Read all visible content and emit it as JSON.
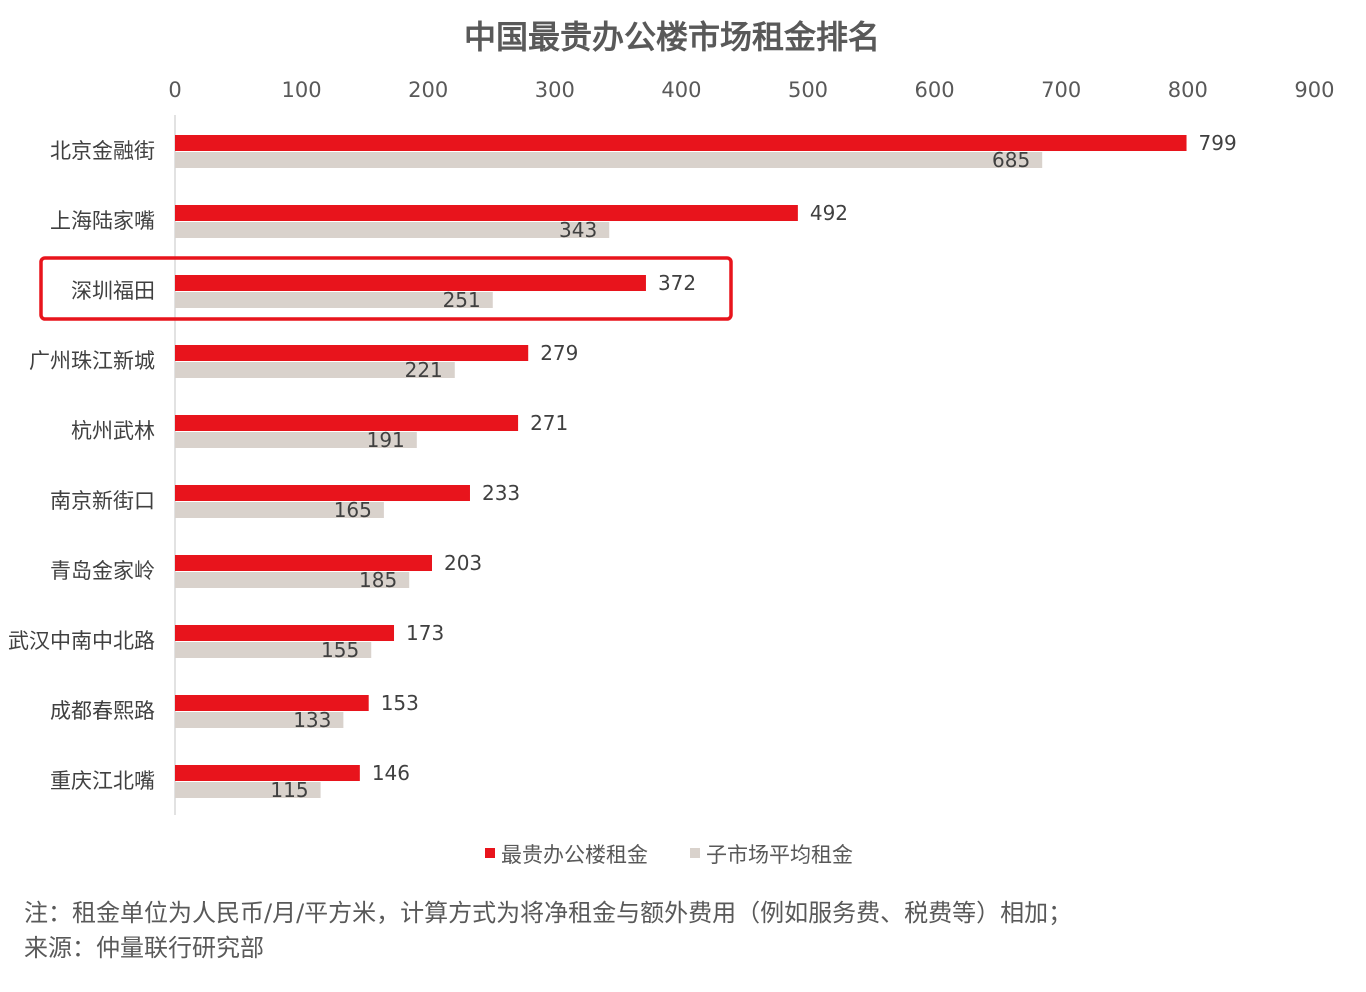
{
  "chart_data": {
    "type": "bar",
    "orientation": "horizontal",
    "title": "中国最贵办公楼市场租金排名",
    "xlim": [
      0,
      900
    ],
    "x_ticks": [
      0,
      100,
      200,
      300,
      400,
      500,
      600,
      700,
      800,
      900
    ],
    "x_axis_position": "top",
    "grid": false,
    "categories": [
      "北京金融街",
      "上海陆家嘴",
      "深圳福田",
      "广州珠江新城",
      "杭州武林",
      "南京新街口",
      "青岛金家岭",
      "武汉中南中北路",
      "成都春熙路",
      "重庆江北嘴"
    ],
    "series": [
      {
        "name": "最贵办公楼租金",
        "color": "#e8141c",
        "values": [
          799,
          492,
          372,
          279,
          271,
          233,
          203,
          173,
          153,
          146
        ]
      },
      {
        "name": "子市场平均租金",
        "color": "#d9d2cc",
        "values": [
          685,
          343,
          251,
          221,
          191,
          165,
          185,
          155,
          133,
          115
        ]
      }
    ],
    "highlight_category": "深圳福田",
    "highlight_color": "#e8141c",
    "legend_position": "bottom"
  },
  "notes": {
    "note": "注：租金单位为人民币/月/平方米，计算方式为将净租金与额外费用（例如服务费、税费等）相加；",
    "source": "来源：仲量联行研究部"
  }
}
